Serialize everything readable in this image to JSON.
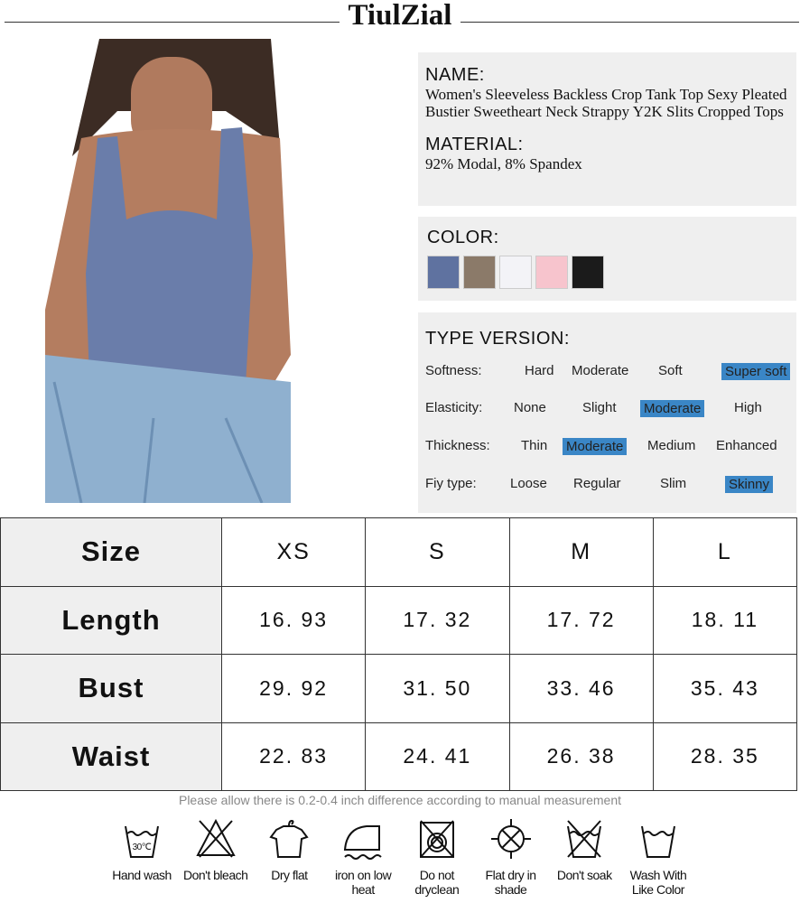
{
  "brand": "TiulZial",
  "name": {
    "label": "NAME:",
    "value": "Women's Sleeveless Backless Crop Tank Top Sexy Pleated Bustier Sweetheart Neck Strappy Y2K Slits Cropped Tops"
  },
  "material": {
    "label": "MATERIAL:",
    "value": "92% Modal, 8% Spandex"
  },
  "color": {
    "label": "COLOR:",
    "swatches": [
      "#5f72a0",
      "#8b7a69",
      "#f3f3f7",
      "#f7c4cd",
      "#1b1b1b"
    ]
  },
  "type_version": {
    "label": "TYPE VERSION:",
    "highlight_color": "#3a86c6",
    "rows": [
      {
        "label": "Softness:",
        "options": [
          "Hard",
          "Moderate",
          "Soft",
          "Super soft"
        ],
        "selected": 3
      },
      {
        "label": "Elasticity:",
        "options": [
          "None",
          "Slight",
          "Moderate",
          "High"
        ],
        "selected": 2
      },
      {
        "label": "Thickness:",
        "options": [
          "Thin",
          "Moderate",
          "Medium",
          "Enhanced"
        ],
        "selected": 1
      },
      {
        "label": "Fiy type:",
        "options": [
          "Loose",
          "Regular",
          "Slim",
          "Skinny"
        ],
        "selected": 3
      }
    ]
  },
  "size_table": {
    "header": [
      "Size",
      "XS",
      "S",
      "M",
      "L"
    ],
    "rows": [
      [
        "Length",
        "16. 93",
        "17. 32",
        "17. 72",
        "18. 11"
      ],
      [
        "Bust",
        "29. 92",
        "31. 50",
        "33. 46",
        "35. 43"
      ],
      [
        "Waist",
        "22. 83",
        "24. 41",
        "26. 38",
        "28. 35"
      ]
    ]
  },
  "note": "Please allow there is 0.2-0.4 inch difference according to  manual measurement",
  "care": [
    {
      "icon": "hand-wash-icon",
      "label": "Hand wash",
      "temp": "30℃"
    },
    {
      "icon": "no-bleach-icon",
      "label": "Don't bleach"
    },
    {
      "icon": "dry-flat-icon",
      "label": "Dry flat"
    },
    {
      "icon": "iron-low-icon",
      "label": "iron on low heat"
    },
    {
      "icon": "no-dryclean-icon",
      "label": "Do not dryclean"
    },
    {
      "icon": "flat-dry-shade-icon",
      "label": "Flat dry in shade"
    },
    {
      "icon": "no-soak-icon",
      "label": "Don't soak"
    },
    {
      "icon": "wash-like-color-icon",
      "label": "Wash With Like Color"
    }
  ]
}
